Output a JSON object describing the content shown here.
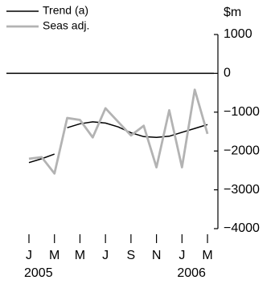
{
  "chart_data": {
    "type": "line",
    "y_unit": "$m",
    "categories": [
      "J",
      null,
      "M",
      null,
      "M",
      null,
      "J",
      null,
      "S",
      null,
      "N",
      null,
      "J",
      null,
      "M"
    ],
    "category_years": [
      "2005",
      null,
      null,
      null,
      null,
      null,
      null,
      null,
      null,
      null,
      null,
      null,
      "2006",
      null,
      null
    ],
    "series": [
      {
        "name": "Trend (a)",
        "color": "#000000",
        "breaks": [
          3
        ],
        "values": [
          -2300,
          -2200,
          -2080,
          -1400,
          -1300,
          -1250,
          -1280,
          -1380,
          -1530,
          -1630,
          -1650,
          -1620,
          -1520,
          -1420,
          -1320
        ]
      },
      {
        "name": "Seas adj.",
        "color": "#b3b3b3",
        "values": [
          -2200,
          -2160,
          -2580,
          -1150,
          -1200,
          -1650,
          -900,
          -1250,
          -1600,
          -1350,
          -2420,
          -950,
          -2420,
          -420,
          -1560
        ]
      }
    ],
    "ylim": [
      -4000,
      1000
    ],
    "yticks": [
      {
        "value": 1000,
        "label": "1000"
      },
      0,
      {
        "value": -1000,
        "label": "−1000"
      },
      {
        "value": -2000,
        "label": "−2000"
      },
      {
        "value": -3000,
        "label": "−3000"
      },
      {
        "value": -4000,
        "label": "−4000"
      }
    ],
    "zero_line": true,
    "legend": "top-left"
  }
}
